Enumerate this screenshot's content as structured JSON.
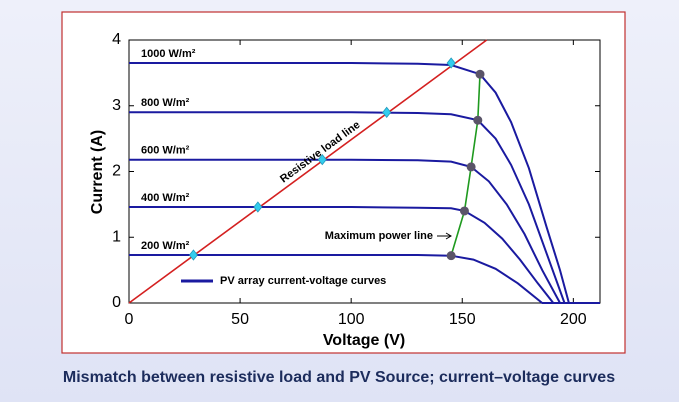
{
  "chart_data": {
    "type": "line",
    "xlabel": "Voltage (V)",
    "ylabel": "Current (A)",
    "xlim": [
      0,
      212
    ],
    "ylim": [
      0,
      4
    ],
    "xticks": [
      0,
      50,
      100,
      150,
      200
    ],
    "yticks": [
      0,
      1,
      2,
      3,
      4
    ],
    "grid": false,
    "series": [
      {
        "name": "1000 W/m²",
        "color": "#1a1aa0",
        "x": [
          0,
          100,
          130,
          145,
          158,
          165,
          172,
          180,
          188,
          194,
          198,
          212
        ],
        "values": [
          3.65,
          3.65,
          3.64,
          3.62,
          3.48,
          3.2,
          2.75,
          2.05,
          1.15,
          0.5,
          0,
          0
        ]
      },
      {
        "name": "800 W/m²",
        "color": "#1a1aa0",
        "x": [
          0,
          100,
          130,
          145,
          157,
          165,
          172,
          180,
          188,
          196,
          212
        ],
        "values": [
          2.9,
          2.9,
          2.89,
          2.87,
          2.78,
          2.5,
          2.1,
          1.5,
          0.75,
          0,
          0
        ]
      },
      {
        "name": "600 W/m²",
        "color": "#1a1aa0",
        "x": [
          0,
          100,
          130,
          145,
          154,
          162,
          170,
          178,
          186,
          194,
          212
        ],
        "values": [
          2.18,
          2.18,
          2.17,
          2.15,
          2.07,
          1.85,
          1.5,
          1.05,
          0.5,
          0,
          0
        ]
      },
      {
        "name": "400 W/m²",
        "color": "#1a1aa0",
        "x": [
          0,
          100,
          130,
          145,
          151,
          160,
          168,
          176,
          184,
          191,
          212
        ],
        "values": [
          1.46,
          1.46,
          1.45,
          1.44,
          1.4,
          1.22,
          0.98,
          0.66,
          0.3,
          0,
          0
        ]
      },
      {
        "name": "200 W/m²",
        "color": "#1a1aa0",
        "x": [
          0,
          100,
          130,
          145,
          155,
          165,
          175,
          186,
          212
        ],
        "values": [
          0.73,
          0.73,
          0.73,
          0.72,
          0.66,
          0.52,
          0.3,
          0,
          0
        ]
      }
    ],
    "load_line": {
      "name": "Resistive load line",
      "color": "#d42020",
      "x": [
        0,
        161
      ],
      "values": [
        0,
        4
      ]
    },
    "operating_points": {
      "color": "#33ccee",
      "x": [
        29,
        58,
        87,
        116,
        145
      ],
      "values": [
        0.73,
        1.46,
        2.18,
        2.9,
        3.65
      ]
    },
    "mpp_line": {
      "name": "Maximum power line",
      "color": "#1f9a1f",
      "x": [
        145,
        151,
        154,
        157,
        158
      ],
      "values": [
        0.72,
        1.4,
        2.07,
        2.78,
        3.48
      ]
    },
    "legend_label": "PV array current-voltage curves"
  },
  "caption": "Mismatch between resistive load and PV Source; current–voltage curves"
}
